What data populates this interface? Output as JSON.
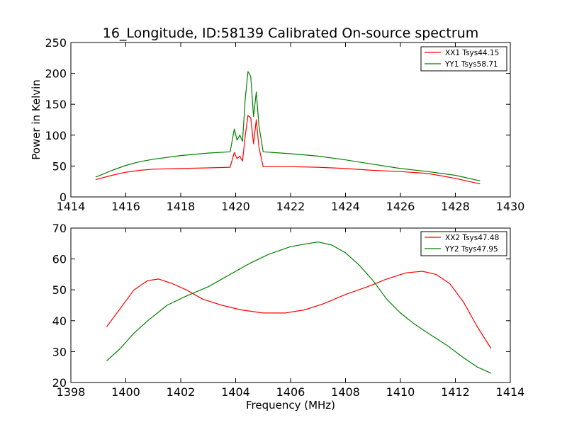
{
  "chart_data": [
    {
      "type": "line",
      "title": "16_Longitude, ID:58139 Calibrated On-source spectrum",
      "xlabel": "",
      "ylabel": "Power in Kelvin",
      "xlim": [
        1414,
        1430
      ],
      "ylim": [
        0,
        250
      ],
      "xticks": [
        1414,
        1416,
        1418,
        1420,
        1422,
        1424,
        1426,
        1428,
        1430
      ],
      "yticks": [
        0,
        50,
        100,
        150,
        200,
        250
      ],
      "legend_position": "top-right",
      "grid": false,
      "series": [
        {
          "name": "XX1 Tsys44.15",
          "color": "#ff0000",
          "x": [
            1414.9,
            1415.5,
            1416,
            1416.5,
            1417,
            1418,
            1419,
            1419.8,
            1419.95,
            1420.05,
            1420.15,
            1420.25,
            1420.35,
            1420.45,
            1420.55,
            1420.65,
            1420.75,
            1420.85,
            1421,
            1422,
            1423,
            1424,
            1425,
            1426,
            1427,
            1428,
            1428.9
          ],
          "values": [
            28,
            35,
            40,
            43,
            45,
            46,
            47,
            48,
            72,
            62,
            66,
            58,
            100,
            132,
            128,
            86,
            125,
            80,
            49,
            49,
            48,
            46,
            43,
            41,
            38,
            30,
            21
          ]
        },
        {
          "name": "YY1 Tsys58.71",
          "color": "#008000",
          "x": [
            1414.9,
            1415.5,
            1416,
            1416.5,
            1417,
            1418,
            1419,
            1419.8,
            1419.95,
            1420.05,
            1420.15,
            1420.25,
            1420.35,
            1420.45,
            1420.55,
            1420.65,
            1420.75,
            1420.85,
            1421,
            1422,
            1423,
            1424,
            1425,
            1426,
            1427,
            1428,
            1428.9
          ],
          "values": [
            32,
            43,
            51,
            57,
            61,
            67,
            71,
            73,
            110,
            92,
            100,
            90,
            160,
            203,
            195,
            130,
            170,
            115,
            73,
            70,
            66,
            60,
            53,
            46,
            41,
            35,
            26
          ]
        }
      ]
    },
    {
      "type": "line",
      "title": "",
      "xlabel": "Frequency (MHz)",
      "ylabel": "",
      "xlim": [
        1398,
        1414
      ],
      "ylim": [
        20,
        70
      ],
      "xticks": [
        1398,
        1400,
        1402,
        1404,
        1406,
        1408,
        1410,
        1412,
        1414
      ],
      "yticks": [
        20,
        30,
        40,
        50,
        60,
        70
      ],
      "legend_position": "top-right",
      "grid": false,
      "series": [
        {
          "name": "XX2 Tsys47.48",
          "color": "#ff0000",
          "x": [
            1399.3,
            1399.8,
            1400.3,
            1400.8,
            1401.2,
            1401.7,
            1402.2,
            1402.8,
            1403.5,
            1404.2,
            1405,
            1405.8,
            1406.5,
            1407.2,
            1408,
            1408.8,
            1409.5,
            1410.2,
            1410.8,
            1411.3,
            1411.8,
            1412.3,
            1412.8,
            1413.3
          ],
          "values": [
            38,
            44,
            50,
            53,
            53.5,
            52,
            50,
            47,
            45,
            43.5,
            42.5,
            42.5,
            43.5,
            45.5,
            48.5,
            51,
            53.5,
            55.5,
            56,
            55,
            52,
            46,
            38,
            31
          ]
        },
        {
          "name": "YY2 Tsys47.95",
          "color": "#008000",
          "x": [
            1399.3,
            1399.8,
            1400.3,
            1400.8,
            1401.5,
            1402.2,
            1403,
            1403.8,
            1404.5,
            1405.2,
            1406,
            1406.5,
            1407,
            1407.5,
            1408,
            1408.5,
            1409,
            1409.5,
            1410,
            1410.5,
            1411,
            1411.7,
            1412.3,
            1412.8,
            1413.3
          ],
          "values": [
            27,
            31,
            36,
            40,
            45,
            48,
            51,
            55,
            58.5,
            61.5,
            64,
            64.8,
            65.5,
            64.5,
            62,
            58,
            53,
            47,
            42.5,
            39,
            36,
            32,
            28,
            25,
            23
          ]
        }
      ]
    }
  ]
}
